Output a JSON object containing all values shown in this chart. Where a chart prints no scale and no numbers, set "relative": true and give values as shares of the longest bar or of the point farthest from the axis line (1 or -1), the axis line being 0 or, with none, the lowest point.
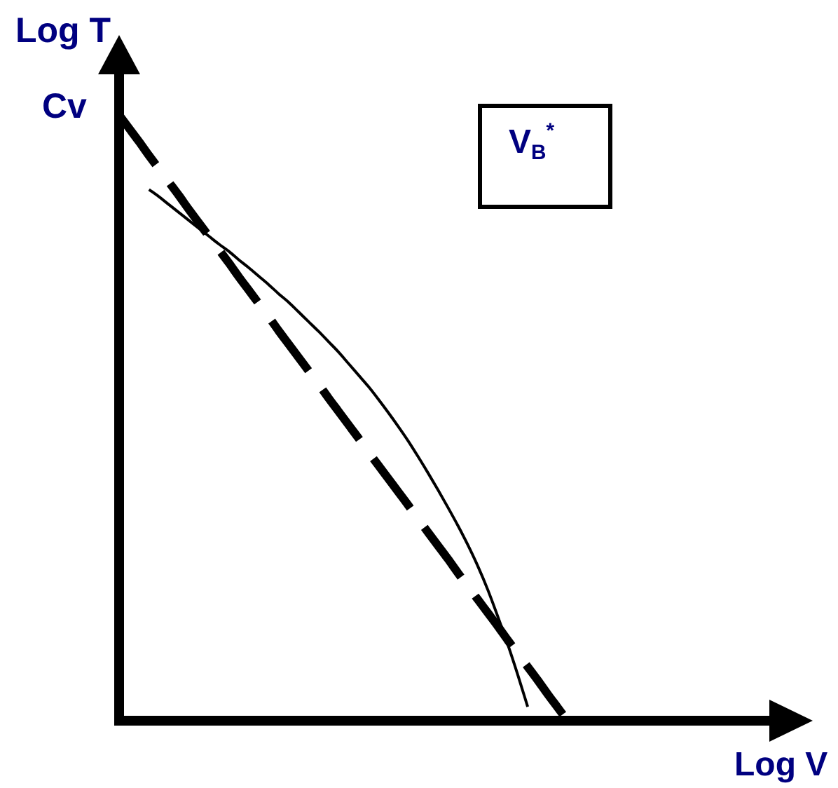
{
  "chart_data": {
    "type": "line",
    "xlabel": "Log V",
    "ylabel": "Log T",
    "annotations": [
      "Cv",
      "V$_{B}$$^{*}$"
    ],
    "categories": [
      null,
      null,
      null,
      null,
      null,
      null,
      null,
      null,
      null,
      null,
      null,
      null,
      null,
      null,
      null,
      null,
      null,
      null,
      null,
      null,
      null,
      null,
      null,
      null,
      null,
      null,
      null,
      null,
      null,
      null,
      null,
      null,
      null,
      null,
      null,
      null,
      null,
      null,
      null,
      null,
      null,
      null,
      null,
      null,
      null,
      null
    ],
    "relative": true,
    "marker": "none",
    "series": [
      {
        "color": "#000000",
        "line_style": "dashed",
        "values": [
          1,
          0.978,
          0.956,
          0.933,
          0.911,
          0.889,
          0.867,
          0.844,
          0.822,
          0.8,
          0.778,
          0.756,
          0.733,
          0.711,
          0.689,
          0.667,
          0.644,
          0.622,
          0.6,
          0.578,
          0.556,
          0.533,
          0.511,
          0.489,
          0.467,
          0.444,
          0.422,
          0.4,
          0.378,
          0.356,
          0.333,
          0.311,
          0.289,
          0.267,
          0.244,
          0.222,
          0.2,
          0.178,
          0.156,
          0.133,
          0.111,
          0.089,
          0.067,
          0.044,
          0.022,
          0
        ]
      },
      {
        "color": "#000000",
        "line_style": "solid",
        "values": [
          null,
          null,
          null,
          0.877,
          0.865,
          0.852,
          0.839,
          0.826,
          0.813,
          0.8,
          0.787,
          0.775,
          0.761,
          0.748,
          0.734,
          0.72,
          0.705,
          0.691,
          0.675,
          0.659,
          0.643,
          0.626,
          0.609,
          0.59,
          0.571,
          0.552,
          0.531,
          0.509,
          0.486,
          0.462,
          0.436,
          0.409,
          0.381,
          0.352,
          0.322,
          0.29,
          0.255,
          0.216,
          0.172,
          0.126,
          0.076,
          0.023,
          null,
          null,
          null,
          null
        ]
      }
    ]
  }
}
